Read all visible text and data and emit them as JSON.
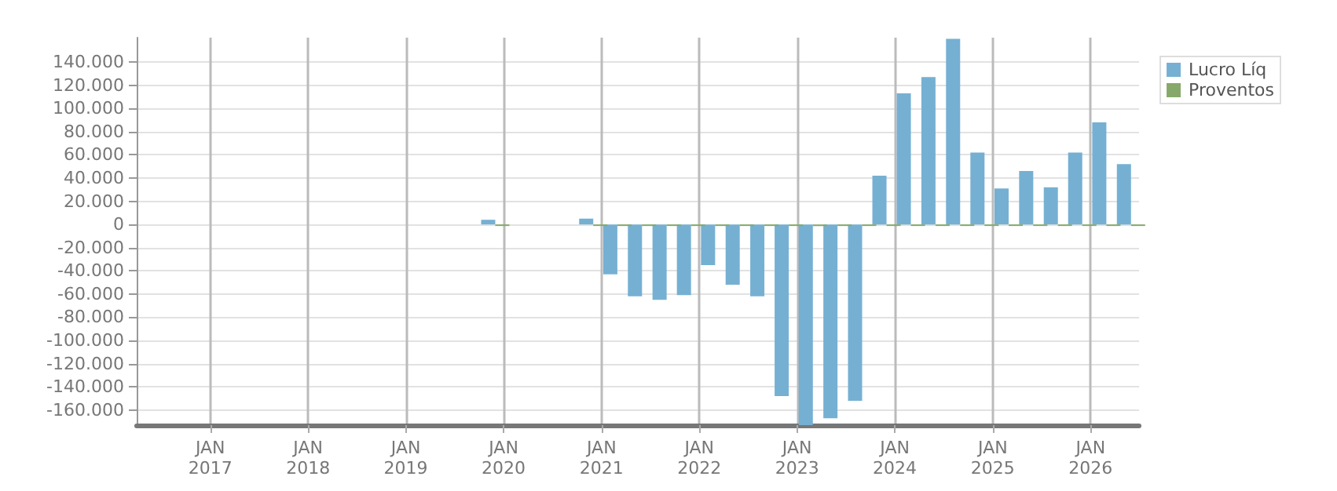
{
  "chart_data": {
    "type": "bar",
    "x": [
      "2019-12",
      "2020-12",
      "2021-03",
      "2021-06",
      "2021-09",
      "2021-12",
      "2022-03",
      "2022-06",
      "2022-09",
      "2022-12",
      "2023-03",
      "2023-06",
      "2023-09",
      "2023-12",
      "2024-03",
      "2024-06",
      "2024-09",
      "2024-12",
      "2025-03",
      "2025-06",
      "2025-09",
      "2025-12",
      "2026-03",
      "2026-06"
    ],
    "series": [
      {
        "name": "Lucro Líq",
        "color": "#75b0d3",
        "values": [
          4000,
          5000,
          -43000,
          -62000,
          -65000,
          -61000,
          -35000,
          -52000,
          -62000,
          -148000,
          -173000,
          -167000,
          -152000,
          42000,
          113000,
          127000,
          160000,
          62000,
          31000,
          46000,
          32000,
          62000,
          88000,
          52000
        ]
      },
      {
        "name": "Proventos",
        "color": "#86a96b",
        "values": [
          0,
          0,
          0,
          0,
          0,
          0,
          0,
          0,
          0,
          0,
          0,
          0,
          0,
          0,
          0,
          0,
          0,
          0,
          0,
          0,
          0,
          0,
          0,
          0
        ]
      }
    ],
    "xlim": [
      "2016-04",
      "2026-07"
    ],
    "xticks": [
      {
        "value": "2017-01",
        "label": "JAN\n2017"
      },
      {
        "value": "2018-01",
        "label": "JAN\n2018"
      },
      {
        "value": "2019-01",
        "label": "JAN\n2019"
      },
      {
        "value": "2020-01",
        "label": "JAN\n2020"
      },
      {
        "value": "2021-01",
        "label": "JAN\n2021"
      },
      {
        "value": "2022-01",
        "label": "JAN\n2022"
      },
      {
        "value": "2023-01",
        "label": "JAN\n2023"
      },
      {
        "value": "2024-01",
        "label": "JAN\n2024"
      },
      {
        "value": "2025-01",
        "label": "JAN\n2025"
      },
      {
        "value": "2026-01",
        "label": "JAN\n2026"
      }
    ],
    "ylim": [
      -173000,
      161000
    ],
    "yticks": [
      {
        "value": -160000,
        "label": "-160.000"
      },
      {
        "value": -140000,
        "label": "-140.000"
      },
      {
        "value": -120000,
        "label": "-120.000"
      },
      {
        "value": -100000,
        "label": "-100.000"
      },
      {
        "value": -80000,
        "label": "-80.000"
      },
      {
        "value": -60000,
        "label": "-60.000"
      },
      {
        "value": -40000,
        "label": "-40.000"
      },
      {
        "value": -20000,
        "label": "-20.000"
      },
      {
        "value": 0,
        "label": "0"
      },
      {
        "value": 20000,
        "label": "20.000"
      },
      {
        "value": 40000,
        "label": "40.000"
      },
      {
        "value": 60000,
        "label": "60.000"
      },
      {
        "value": 80000,
        "label": "80.000"
      },
      {
        "value": 100000,
        "label": "100.000"
      },
      {
        "value": 120000,
        "label": "120.000"
      },
      {
        "value": 140000,
        "label": "140.000"
      }
    ],
    "grid": true,
    "legend": "right"
  }
}
